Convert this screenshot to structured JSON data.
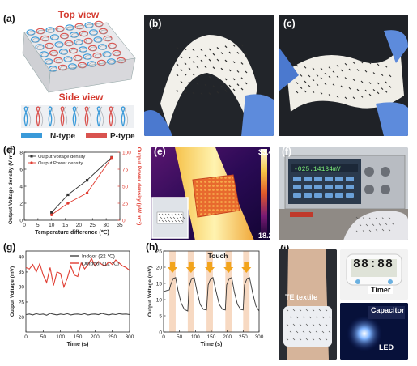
{
  "figure": {
    "panel_labels": [
      "(a)",
      "(b)",
      "(c)",
      "(d)",
      "(e)",
      "(f)",
      "(g)",
      "(h)",
      "(i)"
    ],
    "a": {
      "top_view": "Top view",
      "side_view": "Side view",
      "legend": [
        {
          "label": "N-type",
          "color": "#3a9ad9"
        },
        {
          "label": "P-type",
          "color": "#d9534f"
        }
      ]
    },
    "e": {
      "scale_max": "33.4",
      "scale_min": "18.2"
    },
    "f": {
      "voltage_readout": "-025.14134mV"
    },
    "h": {
      "annotation": "Touch"
    },
    "i": {
      "te_textile": "TE textile",
      "timer": "Timer",
      "timer_display": "88:88",
      "capacitor": "Capacitor",
      "led": "LED"
    }
  },
  "chart_data": [
    {
      "panel": "(d)",
      "type": "line",
      "xlabel": "Temperature difference (℃)",
      "ylabel_left": "Output Voltage density (V m⁻²)",
      "ylabel_right": "Output Power density (μW m⁻²)",
      "xlim": [
        0,
        35
      ],
      "xticks": [
        "0",
        "5",
        "10",
        "15",
        "20",
        "25",
        "30",
        "35"
      ],
      "ylim_left": [
        0,
        8
      ],
      "yticks_left": [
        "0",
        "2",
        "4",
        "6",
        "8"
      ],
      "ylim_right": [
        0,
        100
      ],
      "yticks_right": [
        "0",
        "25",
        "50",
        "75",
        "100"
      ],
      "series": [
        {
          "name": "Output Voltage density",
          "color": "#333333",
          "axis": "left",
          "x": [
            10,
            16,
            23,
            32
          ],
          "y": [
            0.9,
            3.0,
            4.7,
            7.4
          ]
        },
        {
          "name": "Output Power density",
          "color": "#e03c31",
          "axis": "right",
          "x": [
            10,
            16,
            23,
            32
          ],
          "y": [
            8,
            25,
            40,
            92
          ]
        }
      ]
    },
    {
      "panel": "(g)",
      "type": "line",
      "xlabel": "Time (s)",
      "ylabel": "Output Voltage (mV)",
      "xlim": [
        0,
        300
      ],
      "xticks": [
        "0",
        "50",
        "100",
        "150",
        "200",
        "250",
        "300"
      ],
      "ylim": [
        15,
        42
      ],
      "yticks": [
        "20",
        "25",
        "30",
        "35",
        "40"
      ],
      "series": [
        {
          "name": "Indoor (22 ℃)",
          "color": "#444444",
          "x": [
            0,
            10,
            20,
            30,
            40,
            50,
            60,
            70,
            80,
            90,
            100,
            110,
            120,
            130,
            140,
            150,
            160,
            170,
            180,
            190,
            200,
            210,
            220,
            230,
            240,
            250,
            260,
            270,
            280,
            290,
            300
          ],
          "y": [
            20.8,
            21.0,
            20.7,
            21.1,
            20.8,
            21.0,
            20.6,
            21.2,
            20.9,
            20.7,
            21.0,
            20.8,
            21.1,
            20.7,
            20.9,
            21.0,
            20.8,
            21.1,
            20.7,
            20.9,
            21.0,
            20.8,
            21.2,
            20.9,
            20.7,
            21.0,
            20.8,
            21.1,
            20.9,
            21.0,
            20.8
          ]
        },
        {
          "name": "Outdoor (12 ℃)",
          "color": "#e03c31",
          "x": [
            0,
            10,
            20,
            30,
            40,
            50,
            60,
            70,
            80,
            90,
            100,
            110,
            120,
            130,
            140,
            150,
            160,
            170,
            180,
            190,
            200,
            210,
            220,
            230,
            240,
            250,
            260,
            270,
            280,
            290,
            300
          ],
          "y": [
            36.5,
            36,
            37.5,
            35,
            37.8,
            34,
            31.5,
            36.5,
            30.5,
            35,
            34.5,
            30,
            33,
            37,
            34,
            33.5,
            38,
            36,
            37.5,
            39.5,
            37,
            38.5,
            37.5,
            37,
            38.5,
            37.5,
            39,
            38,
            37,
            36.5,
            35.5
          ]
        }
      ]
    },
    {
      "panel": "(h)",
      "type": "line",
      "xlabel": "Time (s)",
      "ylabel": "Output Voltage (mV)",
      "xlim": [
        0,
        300
      ],
      "xticks": [
        "0",
        "50",
        "100",
        "150",
        "200",
        "250",
        "300"
      ],
      "ylim": [
        0,
        25
      ],
      "yticks": [
        "0",
        "5",
        "10",
        "15",
        "20",
        "25"
      ],
      "touch_intervals": [
        [
          18,
          38
        ],
        [
          76,
          96
        ],
        [
          135,
          155
        ],
        [
          194,
          214
        ],
        [
          250,
          270
        ]
      ],
      "series": [
        {
          "name": "Output Voltage",
          "color": "#333333",
          "x": [
            0,
            10,
            18,
            22,
            30,
            38,
            45,
            55,
            65,
            76,
            80,
            88,
            96,
            105,
            115,
            125,
            135,
            140,
            148,
            155,
            165,
            175,
            185,
            194,
            198,
            206,
            214,
            222,
            232,
            242,
            250,
            254,
            262,
            270,
            280,
            290,
            300
          ],
          "y": [
            12.5,
            12.8,
            13,
            14.5,
            16.5,
            16.8,
            13,
            9,
            7,
            6.5,
            14,
            16.5,
            16.8,
            12.5,
            8.5,
            7,
            6.8,
            14.5,
            16.5,
            16.8,
            12.5,
            8.5,
            7,
            6.8,
            14.5,
            16.5,
            16.8,
            12.5,
            8.5,
            7,
            6.8,
            14.5,
            16.5,
            16.8,
            12,
            8,
            6.5
          ]
        }
      ]
    }
  ]
}
